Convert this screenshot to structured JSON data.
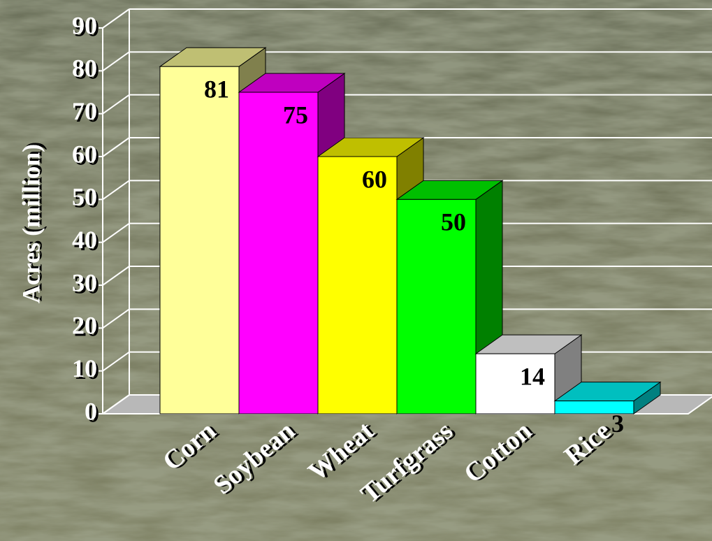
{
  "chart_data": {
    "type": "bar3d",
    "y_label": "Acres (million)",
    "categories": [
      "Corn",
      "Soybean",
      "Wheat",
      "Turfgrass",
      "Cotton",
      "Rice"
    ],
    "values": [
      81,
      75,
      60,
      50,
      14,
      3
    ],
    "colors": [
      "#ffff99",
      "#ff00ff",
      "#ffff00",
      "#00ff00",
      "#ffffff",
      "#00ffff"
    ],
    "ylim": [
      0,
      90
    ],
    "yticks": [
      0,
      10,
      20,
      30,
      40,
      50,
      60,
      70,
      80,
      90
    ],
    "grid": true
  }
}
